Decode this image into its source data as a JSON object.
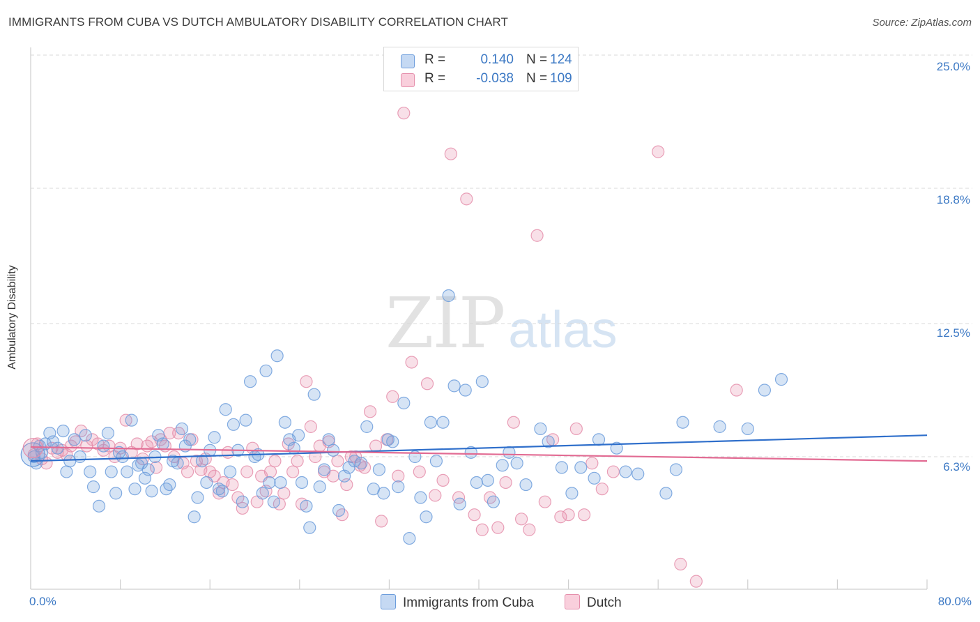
{
  "header": {
    "title": "IMMIGRANTS FROM CUBA VS DUTCH AMBULATORY DISABILITY CORRELATION CHART",
    "source": "Source: ZipAtlas.com"
  },
  "watermark": {
    "zip": "ZIP",
    "atlas": "atlas"
  },
  "legend": {
    "r_label": "R =",
    "n_label": "N =",
    "rows": [
      {
        "r": "0.140",
        "n": "124",
        "fill": "#c5d9f3",
        "stroke": "#6d9ddc"
      },
      {
        "r": "-0.038",
        "n": "109",
        "fill": "#f9cfdc",
        "stroke": "#e58fac"
      }
    ]
  },
  "bottom_legend": [
    "Immigrants from Cuba",
    "Dutch"
  ],
  "chart_data": {
    "type": "scatter",
    "title": "IMMIGRANTS FROM CUBA VS DUTCH AMBULATORY DISABILITY CORRELATION CHART",
    "xlabel": "",
    "ylabel": "Ambulatory Disability",
    "xlim": [
      0,
      80
    ],
    "ylim": [
      0,
      25.5
    ],
    "x_tick_labels": [
      "0.0%",
      "80.0%"
    ],
    "y_ticks": [
      6.3,
      12.5,
      18.8,
      25.0
    ],
    "y_tick_labels": [
      "6.3%",
      "12.5%",
      "18.8%",
      "25.0%"
    ],
    "grid": true,
    "legend_position": "top-center",
    "colors": {
      "cuba": "#6d9ddc",
      "cuba_line": "#2f6fcb",
      "dutch": "#e58fac",
      "dutch_line": "#e26b93"
    },
    "series": [
      {
        "name": "Immigrants from Cuba",
        "trend": [
          [
            0,
            6.1
          ],
          [
            80,
            7.3
          ]
        ],
        "points": [
          [
            0.3,
            6.3
          ],
          [
            0.5,
            6.0
          ],
          [
            0.8,
            6.8
          ],
          [
            1.0,
            6.5
          ],
          [
            1.3,
            6.9
          ],
          [
            1.7,
            7.4
          ],
          [
            2.0,
            7.0
          ],
          [
            2.4,
            6.7
          ],
          [
            2.9,
            7.5
          ],
          [
            3.2,
            5.6
          ],
          [
            3.5,
            6.1
          ],
          [
            3.9,
            7.1
          ],
          [
            4.4,
            6.3
          ],
          [
            4.9,
            7.3
          ],
          [
            5.3,
            5.6
          ],
          [
            5.6,
            4.9
          ],
          [
            6.1,
            4.0
          ],
          [
            6.5,
            6.8
          ],
          [
            6.9,
            7.4
          ],
          [
            7.2,
            5.6
          ],
          [
            7.6,
            4.6
          ],
          [
            7.9,
            6.5
          ],
          [
            8.2,
            6.3
          ],
          [
            8.6,
            5.6
          ],
          [
            9.0,
            8.0
          ],
          [
            9.3,
            4.8
          ],
          [
            9.6,
            5.9
          ],
          [
            9.9,
            6.0
          ],
          [
            10.2,
            5.3
          ],
          [
            10.5,
            5.7
          ],
          [
            10.8,
            4.7
          ],
          [
            11.1,
            6.3
          ],
          [
            11.4,
            7.3
          ],
          [
            11.8,
            6.9
          ],
          [
            12.1,
            4.8
          ],
          [
            12.4,
            5.0
          ],
          [
            12.7,
            6.1
          ],
          [
            13.1,
            6.0
          ],
          [
            13.5,
            7.6
          ],
          [
            13.8,
            6.8
          ],
          [
            14.2,
            7.1
          ],
          [
            14.6,
            3.5
          ],
          [
            14.9,
            4.4
          ],
          [
            15.3,
            6.1
          ],
          [
            15.7,
            5.1
          ],
          [
            16.0,
            6.6
          ],
          [
            16.4,
            7.2
          ],
          [
            16.8,
            4.8
          ],
          [
            17.1,
            4.7
          ],
          [
            17.4,
            8.5
          ],
          [
            17.8,
            5.6
          ],
          [
            18.1,
            7.8
          ],
          [
            18.5,
            6.6
          ],
          [
            18.9,
            4.2
          ],
          [
            19.2,
            8.0
          ],
          [
            19.6,
            9.8
          ],
          [
            20.0,
            6.3
          ],
          [
            20.3,
            6.4
          ],
          [
            20.7,
            4.6
          ],
          [
            21.0,
            10.3
          ],
          [
            21.3,
            5.1
          ],
          [
            21.7,
            4.2
          ],
          [
            22.0,
            11.0
          ],
          [
            22.3,
            5.1
          ],
          [
            22.7,
            7.9
          ],
          [
            23.1,
            7.1
          ],
          [
            23.5,
            6.7
          ],
          [
            23.9,
            7.3
          ],
          [
            24.2,
            5.1
          ],
          [
            24.6,
            4.0
          ],
          [
            24.9,
            3.0
          ],
          [
            25.3,
            9.2
          ],
          [
            25.8,
            4.9
          ],
          [
            26.2,
            5.7
          ],
          [
            26.6,
            7.1
          ],
          [
            27.0,
            6.6
          ],
          [
            27.5,
            3.8
          ],
          [
            28.0,
            5.4
          ],
          [
            28.4,
            5.8
          ],
          [
            28.9,
            6.1
          ],
          [
            29.5,
            6.0
          ],
          [
            30.0,
            7.7
          ],
          [
            30.6,
            4.8
          ],
          [
            31.1,
            5.7
          ],
          [
            31.5,
            4.6
          ],
          [
            31.9,
            7.1
          ],
          [
            32.3,
            7.0
          ],
          [
            32.8,
            4.9
          ],
          [
            33.3,
            8.8
          ],
          [
            33.8,
            2.5
          ],
          [
            34.3,
            6.3
          ],
          [
            34.8,
            4.4
          ],
          [
            35.3,
            3.5
          ],
          [
            35.7,
            7.9
          ],
          [
            36.2,
            6.1
          ],
          [
            36.8,
            7.9
          ],
          [
            37.3,
            13.8
          ],
          [
            37.8,
            9.6
          ],
          [
            38.3,
            4.1
          ],
          [
            38.8,
            9.4
          ],
          [
            39.3,
            6.5
          ],
          [
            39.8,
            5.1
          ],
          [
            40.3,
            9.8
          ],
          [
            40.8,
            5.2
          ],
          [
            41.3,
            4.2
          ],
          [
            42.1,
            5.9
          ],
          [
            42.7,
            6.5
          ],
          [
            43.4,
            6.0
          ],
          [
            44.2,
            5.0
          ],
          [
            45.5,
            7.6
          ],
          [
            46.2,
            7.0
          ],
          [
            47.4,
            5.8
          ],
          [
            48.3,
            4.6
          ],
          [
            49.1,
            5.8
          ],
          [
            50.3,
            5.3
          ],
          [
            50.7,
            7.1
          ],
          [
            52.3,
            6.7
          ],
          [
            53.1,
            5.6
          ],
          [
            54.2,
            5.5
          ],
          [
            56.7,
            4.6
          ],
          [
            57.6,
            5.7
          ],
          [
            58.2,
            7.9
          ],
          [
            61.5,
            7.7
          ],
          [
            64.0,
            7.6
          ],
          [
            65.5,
            9.4
          ],
          [
            67.0,
            9.9
          ]
        ]
      },
      {
        "name": "Dutch",
        "trend": [
          [
            0,
            6.75
          ],
          [
            80,
            6.1
          ]
        ],
        "points": [
          [
            0.3,
            6.4
          ],
          [
            0.6,
            6.9
          ],
          [
            1.0,
            6.2
          ],
          [
            1.4,
            6.0
          ],
          [
            1.9,
            6.7
          ],
          [
            2.4,
            6.5
          ],
          [
            2.8,
            6.6
          ],
          [
            3.2,
            6.4
          ],
          [
            3.6,
            6.8
          ],
          [
            4.0,
            7.0
          ],
          [
            4.5,
            7.5
          ],
          [
            5.0,
            6.8
          ],
          [
            5.5,
            7.1
          ],
          [
            6.0,
            6.9
          ],
          [
            6.5,
            6.6
          ],
          [
            7.0,
            6.8
          ],
          [
            7.5,
            6.3
          ],
          [
            8.0,
            6.7
          ],
          [
            8.5,
            8.0
          ],
          [
            9.0,
            6.5
          ],
          [
            9.5,
            6.9
          ],
          [
            10.0,
            6.2
          ],
          [
            10.4,
            6.8
          ],
          [
            10.8,
            7.0
          ],
          [
            11.2,
            5.8
          ],
          [
            11.6,
            7.1
          ],
          [
            12.0,
            6.8
          ],
          [
            12.4,
            7.4
          ],
          [
            12.8,
            6.3
          ],
          [
            13.2,
            7.4
          ],
          [
            13.6,
            6.0
          ],
          [
            14.0,
            5.6
          ],
          [
            14.4,
            7.1
          ],
          [
            14.8,
            6.1
          ],
          [
            15.2,
            5.7
          ],
          [
            15.6,
            6.2
          ],
          [
            16.0,
            5.6
          ],
          [
            16.4,
            5.4
          ],
          [
            16.8,
            4.6
          ],
          [
            17.2,
            5.1
          ],
          [
            17.6,
            6.5
          ],
          [
            18.0,
            5.0
          ],
          [
            18.5,
            4.4
          ],
          [
            18.9,
            3.9
          ],
          [
            19.3,
            5.6
          ],
          [
            19.8,
            6.7
          ],
          [
            20.2,
            4.2
          ],
          [
            20.6,
            5.4
          ],
          [
            21.0,
            4.7
          ],
          [
            21.4,
            5.6
          ],
          [
            21.8,
            6.1
          ],
          [
            22.2,
            4.1
          ],
          [
            22.6,
            4.6
          ],
          [
            23.0,
            6.9
          ],
          [
            23.4,
            5.6
          ],
          [
            23.8,
            6.1
          ],
          [
            24.2,
            4.1
          ],
          [
            24.6,
            9.8
          ],
          [
            25.0,
            7.7
          ],
          [
            25.4,
            6.3
          ],
          [
            25.8,
            6.8
          ],
          [
            26.2,
            5.6
          ],
          [
            26.6,
            7.0
          ],
          [
            27.0,
            5.4
          ],
          [
            27.4,
            6.1
          ],
          [
            27.8,
            3.6
          ],
          [
            28.2,
            5.0
          ],
          [
            28.6,
            6.3
          ],
          [
            29.0,
            6.3
          ],
          [
            29.4,
            5.9
          ],
          [
            29.8,
            5.8
          ],
          [
            30.3,
            8.4
          ],
          [
            30.8,
            6.8
          ],
          [
            31.3,
            3.3
          ],
          [
            31.8,
            7.1
          ],
          [
            32.3,
            9.1
          ],
          [
            32.8,
            5.4
          ],
          [
            33.3,
            22.3
          ],
          [
            34.0,
            10.7
          ],
          [
            34.7,
            5.6
          ],
          [
            35.4,
            9.7
          ],
          [
            36.1,
            4.5
          ],
          [
            36.8,
            5.2
          ],
          [
            37.5,
            20.4
          ],
          [
            38.2,
            4.4
          ],
          [
            38.9,
            18.3
          ],
          [
            39.6,
            3.6
          ],
          [
            40.3,
            2.9
          ],
          [
            41.0,
            4.4
          ],
          [
            41.7,
            3.0
          ],
          [
            42.4,
            5.1
          ],
          [
            43.1,
            7.9
          ],
          [
            43.8,
            3.4
          ],
          [
            44.5,
            2.9
          ],
          [
            45.2,
            16.6
          ],
          [
            45.9,
            4.2
          ],
          [
            46.6,
            7.1
          ],
          [
            47.3,
            3.5
          ],
          [
            48.0,
            3.6
          ],
          [
            48.7,
            7.6
          ],
          [
            49.4,
            3.6
          ],
          [
            50.1,
            6.0
          ],
          [
            51.0,
            4.8
          ],
          [
            52.0,
            5.6
          ],
          [
            56.0,
            20.5
          ],
          [
            58.0,
            1.3
          ],
          [
            59.4,
            0.5
          ],
          [
            63.0,
            9.4
          ]
        ]
      }
    ]
  }
}
